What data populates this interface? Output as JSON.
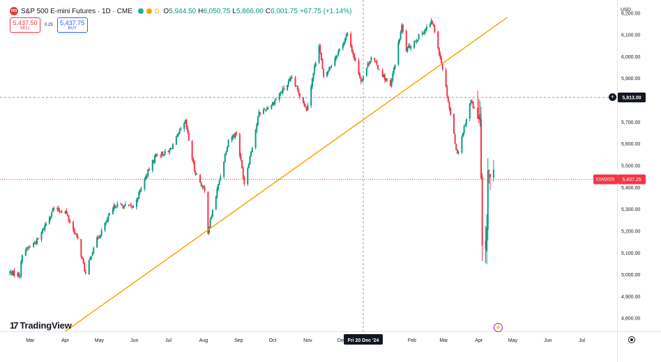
{
  "header": {
    "title": "S&P 500 E-mini Futures · 1D · CME",
    "logo_text": "500",
    "flag": "D",
    "open_label": "O",
    "open_value": "5,944.50",
    "high_label": "H",
    "high_value": "6,050.75",
    "low_label": "L",
    "low_value": "5,866.00",
    "close_label": "C",
    "close_value": "6,001.75",
    "change_value": "+67.75 (+1.14%)"
  },
  "trade": {
    "sell_price": "5,437.50",
    "sell_label": "SELL",
    "spread": "0.25",
    "buy_price": "5,437.75",
    "buy_label": "BUY"
  },
  "currency": "USD",
  "watermark": "TradingView",
  "price_tag": {
    "symbol": "ESM2025",
    "value": "5,437.25"
  },
  "crosshair": {
    "price_label": "5,813.00",
    "price": 5813,
    "date_label": "Fri 20 Dec '24",
    "date": "2024-12-20"
  },
  "colors": {
    "up": "#089981",
    "down": "#f23645",
    "trendline": "#f7a600",
    "grid_text": "#131722"
  },
  "chart_data": {
    "type": "candlestick",
    "title": "S&P 500 E-mini Futures · 1D · CME",
    "y_axis": {
      "position": "right",
      "ylim": [
        4740,
        6260
      ],
      "ticks": [
        4800,
        4900,
        5000,
        5100,
        5200,
        5300,
        5400,
        5500,
        5600,
        5700,
        5800,
        5900,
        6000,
        6100,
        6200
      ],
      "tick_labels": [
        "4,800.00",
        "4,900.00",
        "5,000.00",
        "5,100.00",
        "5,200.00",
        "5,300.00",
        "5,400.00",
        "5,500.00",
        "5,600.00",
        "5,700.00",
        "5,800.00",
        "5,900.00",
        "6,000.00",
        "6,100.00",
        "6,200.00"
      ]
    },
    "x_axis": {
      "xlim": [
        "2024-02-12",
        "2025-08-01"
      ],
      "ticks": [
        "2024-03-01",
        "2024-04-01",
        "2024-05-01",
        "2024-06-01",
        "2024-07-01",
        "2024-08-01",
        "2024-09-01",
        "2024-10-01",
        "2024-11-01",
        "2024-12-01",
        "2025-02-01",
        "2025-03-01",
        "2025-04-01",
        "2025-05-01",
        "2025-06-01",
        "2025-07-01"
      ],
      "tick_labels": [
        "Mar",
        "Apr",
        "May",
        "Jun",
        "Jul",
        "Aug",
        "Sep",
        "Oct",
        "Nov",
        "Dec",
        "Feb",
        "Mar",
        "Apr",
        "May",
        "Jun",
        "Jul"
      ]
    },
    "grid": false,
    "close_path": [
      [
        "2024-02-12",
        5010
      ],
      [
        "2024-02-21",
        5000
      ],
      [
        "2024-02-23",
        5100
      ],
      [
        "2024-03-08",
        5160
      ],
      [
        "2024-03-21",
        5300
      ],
      [
        "2024-04-01",
        5290
      ],
      [
        "2024-04-12",
        5160
      ],
      [
        "2024-04-19",
        5000
      ],
      [
        "2024-04-26",
        5130
      ],
      [
        "2024-05-15",
        5320
      ],
      [
        "2024-05-31",
        5310
      ],
      [
        "2024-06-12",
        5460
      ],
      [
        "2024-06-20",
        5550
      ],
      [
        "2024-07-01",
        5560
      ],
      [
        "2024-07-16",
        5700
      ],
      [
        "2024-07-24",
        5480
      ],
      [
        "2024-08-02",
        5380
      ],
      [
        "2024-08-05",
        5200
      ],
      [
        "2024-08-23",
        5620
      ],
      [
        "2024-08-30",
        5650
      ],
      [
        "2024-09-06",
        5420
      ],
      [
        "2024-09-19",
        5740
      ],
      [
        "2024-09-30",
        5780
      ],
      [
        "2024-10-18",
        5900
      ],
      [
        "2024-10-31",
        5760
      ],
      [
        "2024-11-11",
        6060
      ],
      [
        "2024-11-15",
        5900
      ],
      [
        "2024-12-06",
        6100
      ],
      [
        "2024-12-18",
        5890
      ],
      [
        "2024-12-27",
        6000
      ],
      [
        "2025-01-13",
        5860
      ],
      [
        "2025-01-23",
        6140
      ],
      [
        "2025-01-27",
        6030
      ],
      [
        "2025-02-19",
        6160
      ],
      [
        "2025-02-28",
        5950
      ],
      [
        "2025-03-13",
        5550
      ],
      [
        "2025-03-25",
        5800
      ],
      [
        "2025-04-02",
        5700
      ],
      [
        "2025-04-04",
        5100
      ],
      [
        "2025-04-07",
        5050
      ],
      [
        "2025-04-09",
        5480
      ],
      [
        "2025-04-11",
        5430
      ],
      [
        "2025-04-14",
        5437.25
      ]
    ],
    "trendline": {
      "start": [
        "2024-04-01",
        4740
      ],
      "end": [
        "2025-04-26",
        6180
      ]
    }
  }
}
